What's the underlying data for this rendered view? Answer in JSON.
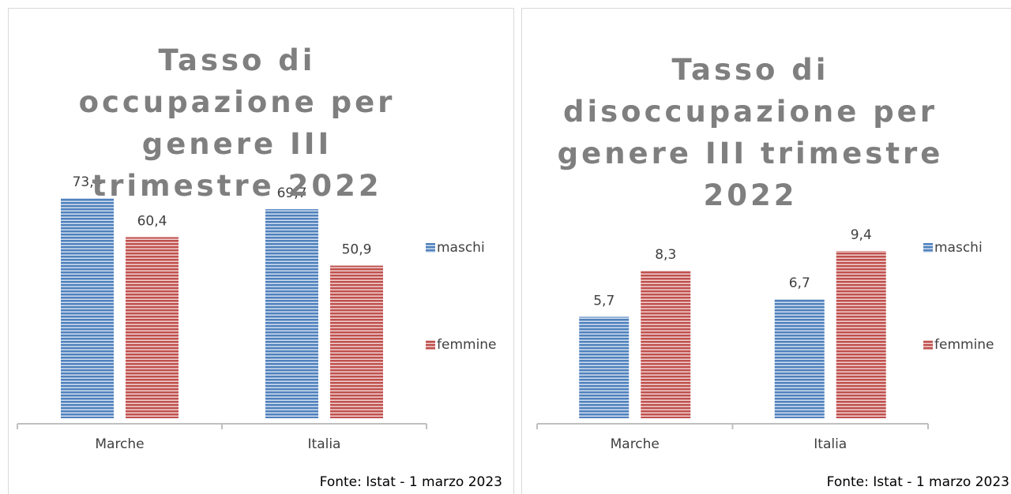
{
  "chart_data": [
    {
      "type": "bar",
      "title": "Tasso di occupazione per genere III trimestre 2022",
      "categories": [
        "Marche",
        "Italia"
      ],
      "series": [
        {
          "name": "maschi",
          "color": "#4f81bd",
          "values": [
            73.4,
            69.7
          ],
          "value_labels": [
            "73,4",
            "69,7"
          ]
        },
        {
          "name": "femmine",
          "color": "#c0504d",
          "values": [
            60.4,
            50.9
          ],
          "value_labels": [
            "60,4",
            "50,9"
          ]
        }
      ],
      "ylim": [
        0,
        80
      ],
      "legend": "right",
      "source": "Fonte: Istat - 1 marzo 2023"
    },
    {
      "type": "bar",
      "title": "Tasso di disoccupazione per genere III trimestre 2022",
      "categories": [
        "Marche",
        "Italia"
      ],
      "series": [
        {
          "name": "maschi",
          "color": "#4f81bd",
          "values": [
            5.7,
            6.7
          ],
          "value_labels": [
            "5,7",
            "6,7"
          ]
        },
        {
          "name": "femmine",
          "color": "#c0504d",
          "values": [
            8.3,
            9.4
          ],
          "value_labels": [
            "8,3",
            "9,4"
          ]
        }
      ],
      "ylim": [
        0,
        10
      ],
      "legend": "right",
      "source": "Fonte: Istat - 1 marzo 2023"
    }
  ]
}
